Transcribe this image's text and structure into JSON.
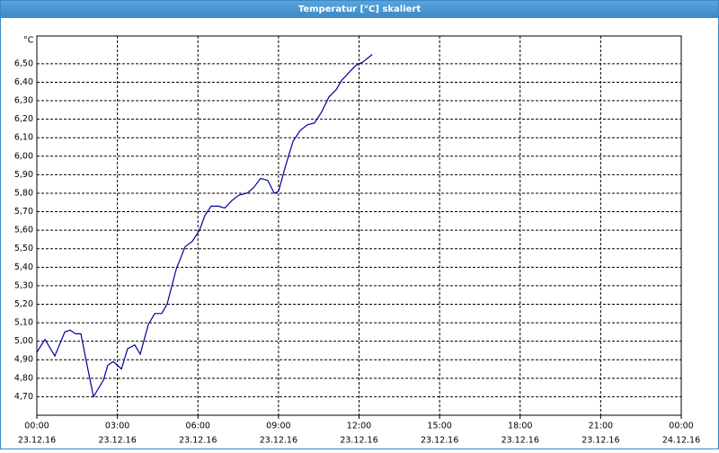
{
  "chart_data": {
    "type": "line",
    "title": "Temperatur [°C] skaliert",
    "y_label": "°C",
    "x": [
      0,
      0.3,
      0.67,
      1.04,
      1.24,
      1.44,
      1.64,
      1.87,
      2.11,
      2.48,
      2.64,
      2.85,
      3.15,
      3.38,
      3.65,
      3.85,
      4.15,
      4.39,
      4.65,
      4.85,
      5.19,
      5.52,
      5.79,
      6.06,
      6.26,
      6.49,
      6.76,
      7.0,
      7.26,
      7.53,
      7.83,
      8.07,
      8.33,
      8.6,
      8.84,
      9.0,
      9.27,
      9.54,
      9.81,
      10.08,
      10.34,
      10.61,
      10.88,
      11.15,
      11.35,
      11.61,
      11.88,
      12.15,
      12.49
    ],
    "y": [
      4.94,
      5.01,
      4.92,
      5.05,
      5.06,
      5.04,
      5.04,
      4.87,
      4.7,
      4.79,
      4.87,
      4.89,
      4.85,
      4.96,
      4.98,
      4.93,
      5.09,
      5.15,
      5.15,
      5.2,
      5.39,
      5.51,
      5.54,
      5.6,
      5.68,
      5.73,
      5.73,
      5.72,
      5.76,
      5.79,
      5.8,
      5.83,
      5.88,
      5.87,
      5.8,
      5.81,
      5.95,
      6.08,
      6.14,
      6.17,
      6.18,
      6.24,
      6.32,
      6.36,
      6.41,
      6.45,
      6.49,
      6.51,
      6.55
    ],
    "color": "#0000a0",
    "xlim": [
      0,
      24
    ],
    "xticks": [
      {
        "value": 0,
        "label": "00:00",
        "date": "23.12.16"
      },
      {
        "value": 3,
        "label": "03:00",
        "date": "23.12.16"
      },
      {
        "value": 6,
        "label": "06:00",
        "date": "23.12.16"
      },
      {
        "value": 9,
        "label": "09:00",
        "date": "23.12.16"
      },
      {
        "value": 12,
        "label": "12:00",
        "date": "23.12.16"
      },
      {
        "value": 15,
        "label": "15:00",
        "date": "23.12.16"
      },
      {
        "value": 18,
        "label": "18:00",
        "date": "23.12.16"
      },
      {
        "value": 21,
        "label": "21:00",
        "date": "23.12.16"
      },
      {
        "value": 24,
        "label": "00:00",
        "date": "24.12.16"
      }
    ],
    "ylim": [
      4.6,
      6.65
    ],
    "yticks": [
      {
        "value": 4.7,
        "label": "4,70"
      },
      {
        "value": 4.8,
        "label": "4,80"
      },
      {
        "value": 4.9,
        "label": "4,90"
      },
      {
        "value": 5.0,
        "label": "5,00"
      },
      {
        "value": 5.1,
        "label": "5,10"
      },
      {
        "value": 5.2,
        "label": "5,20"
      },
      {
        "value": 5.3,
        "label": "5,30"
      },
      {
        "value": 5.4,
        "label": "5,40"
      },
      {
        "value": 5.5,
        "label": "5,50"
      },
      {
        "value": 5.6,
        "label": "5,60"
      },
      {
        "value": 5.7,
        "label": "5,70"
      },
      {
        "value": 5.8,
        "label": "5,80"
      },
      {
        "value": 5.9,
        "label": "5,90"
      },
      {
        "value": 6.0,
        "label": "6,00"
      },
      {
        "value": 6.1,
        "label": "6,10"
      },
      {
        "value": 6.2,
        "label": "6,20"
      },
      {
        "value": 6.3,
        "label": "6,30"
      },
      {
        "value": 6.4,
        "label": "6,40"
      },
      {
        "value": 6.5,
        "label": "6,50"
      }
    ],
    "grid": true
  }
}
